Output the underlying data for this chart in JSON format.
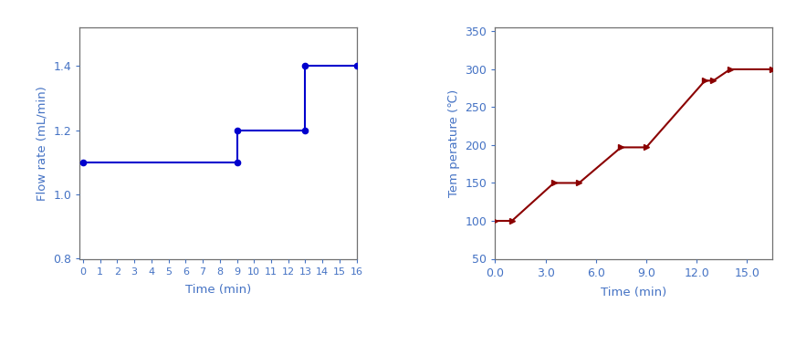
{
  "flow_x": [
    0,
    9,
    9,
    13,
    13,
    16
  ],
  "flow_y": [
    1.1,
    1.1,
    1.2,
    1.2,
    1.4,
    1.4
  ],
  "flow_marker_x": [
    0,
    9,
    9,
    13,
    13,
    16
  ],
  "flow_marker_y": [
    1.1,
    1.1,
    1.2,
    1.2,
    1.4,
    1.4
  ],
  "flow_xlim": [
    -0.2,
    16
  ],
  "flow_ylim": [
    0.8,
    1.52
  ],
  "flow_xticks": [
    0,
    1,
    2,
    3,
    4,
    5,
    6,
    7,
    8,
    9,
    10,
    11,
    12,
    13,
    14,
    15,
    16
  ],
  "flow_yticks": [
    0.8,
    1.0,
    1.2,
    1.4
  ],
  "flow_xlabel": "Time (min)",
  "flow_ylabel": "Flow rate (mL/min)",
  "flow_line_color": "#0000CD",
  "flow_label_color": "#4472C4",
  "flow_tick_color": "#4472C4",
  "temp_x": [
    0.0,
    1.0,
    3.5,
    5.0,
    7.5,
    9.0,
    12.5,
    13.0,
    14.0,
    16.5
  ],
  "temp_y": [
    100,
    100,
    150,
    150,
    197,
    197,
    285,
    285,
    300,
    300
  ],
  "temp_xlim": [
    0.0,
    16.5
  ],
  "temp_ylim": [
    50,
    355
  ],
  "temp_xticks": [
    0.0,
    3.0,
    6.0,
    9.0,
    12.0,
    15.0
  ],
  "temp_yticks": [
    50,
    100,
    150,
    200,
    250,
    300,
    350
  ],
  "temp_xlabel": "Time (min)",
  "temp_ylabel": "Tem perature (℃)",
  "temp_line_color": "#8B0000",
  "temp_label_color": "#4472C4",
  "temp_tick_color": "#4472C4",
  "background_color": "#ffffff",
  "spine_color": "#707070"
}
